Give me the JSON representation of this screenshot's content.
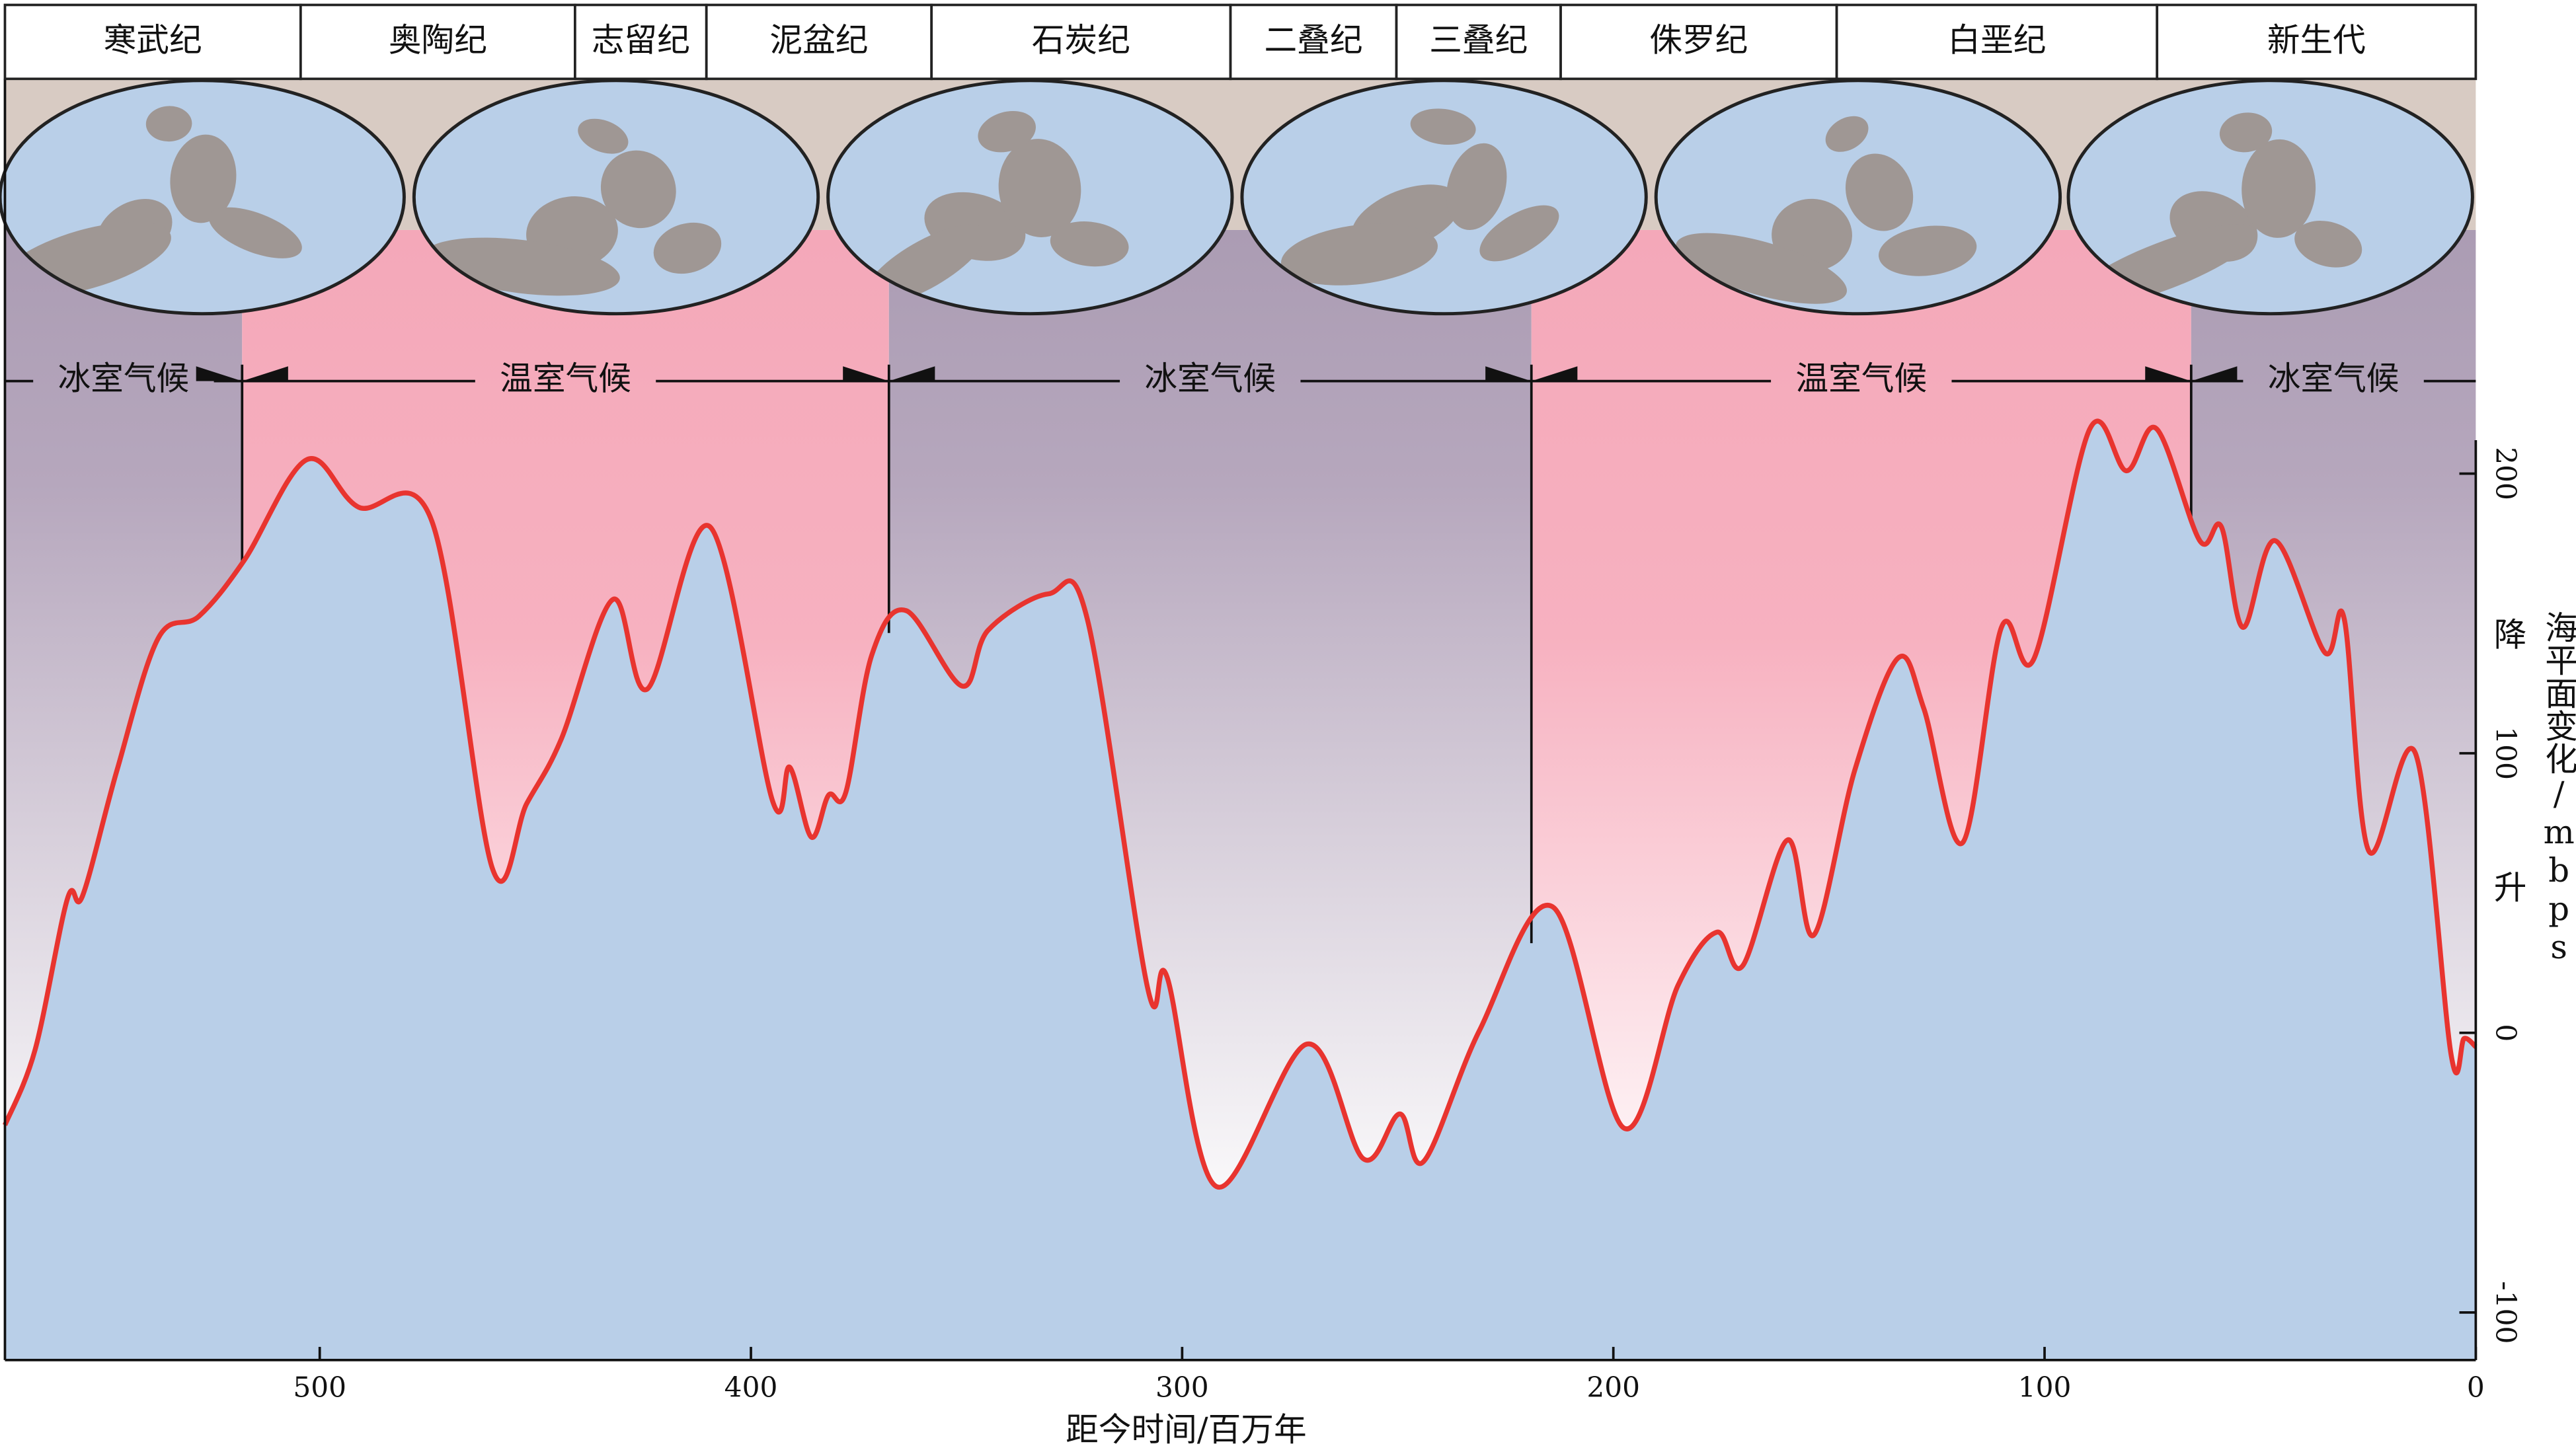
{
  "periods": [
    "寒武纪",
    "奥陶纪",
    "志留纪",
    "泥盆纪",
    "石炭纪",
    "二叠纪",
    "三叠纪",
    "侏罗纪",
    "白垩纪",
    "新生代"
  ],
  "chart_data": {
    "type": "area",
    "xlabel": "距今时间/百万年",
    "ylabel": "海平面变化/mbps",
    "ylabel_low": "降",
    "ylabel_high": "升",
    "color": "#e8342f",
    "fill_color": "#b9cfe8",
    "xlim": [
      573,
      0
    ],
    "ylim": [
      -117,
      340
    ],
    "xticks": [
      500,
      400,
      300,
      200,
      100,
      0
    ],
    "yticks": [
      -100,
      0,
      100,
      200
    ],
    "climate_intervals": [
      {
        "label": "冰室气候",
        "from": 573,
        "to": 518,
        "kind": "icehouse"
      },
      {
        "label": "温室气候",
        "from": 518,
        "to": 368,
        "kind": "greenhouse"
      },
      {
        "label": "冰室气候",
        "from": 368,
        "to": 219,
        "kind": "icehouse"
      },
      {
        "label": "温室气候",
        "from": 219,
        "to": 66,
        "kind": "greenhouse"
      },
      {
        "label": "冰室气候",
        "from": 66,
        "to": 0,
        "kind": "icehouse"
      }
    ],
    "x": [
      573,
      566,
      558.5,
      555,
      547,
      537.5,
      528,
      517.5,
      503,
      491,
      474,
      460,
      452,
      444,
      432,
      424,
      409.5,
      395,
      391,
      386,
      382,
      378,
      372,
      364,
      351,
      345,
      331,
      322,
      308,
      303.5,
      292,
      271,
      258,
      249.5,
      244,
      231,
      214,
      197.6,
      185,
      176,
      170,
      159.6,
      153.5,
      144,
      134,
      128,
      119,
      110,
      102.4,
      89.5,
      81,
      74,
      64,
      59,
      54,
      46.5,
      35,
      30.5,
      24.8,
      14,
      5.7,
      2.7,
      0
    ],
    "values": [
      -33,
      -6,
      48,
      49,
      94,
      141,
      149,
      169,
      205,
      188,
      183,
      59,
      82,
      105,
      155,
      123,
      181,
      83,
      95,
      70,
      85,
      86,
      135,
      151,
      124,
      144,
      157,
      148,
      16,
      20,
      -55,
      -4,
      -45,
      -29,
      -46,
      1,
      45,
      -34,
      17,
      36,
      24,
      69,
      35,
      94,
      134,
      116,
      68,
      145,
      134,
      216,
      201,
      216,
      176,
      181,
      145,
      176,
      136,
      148,
      65,
      100,
      -8,
      -2,
      -5
    ]
  }
}
